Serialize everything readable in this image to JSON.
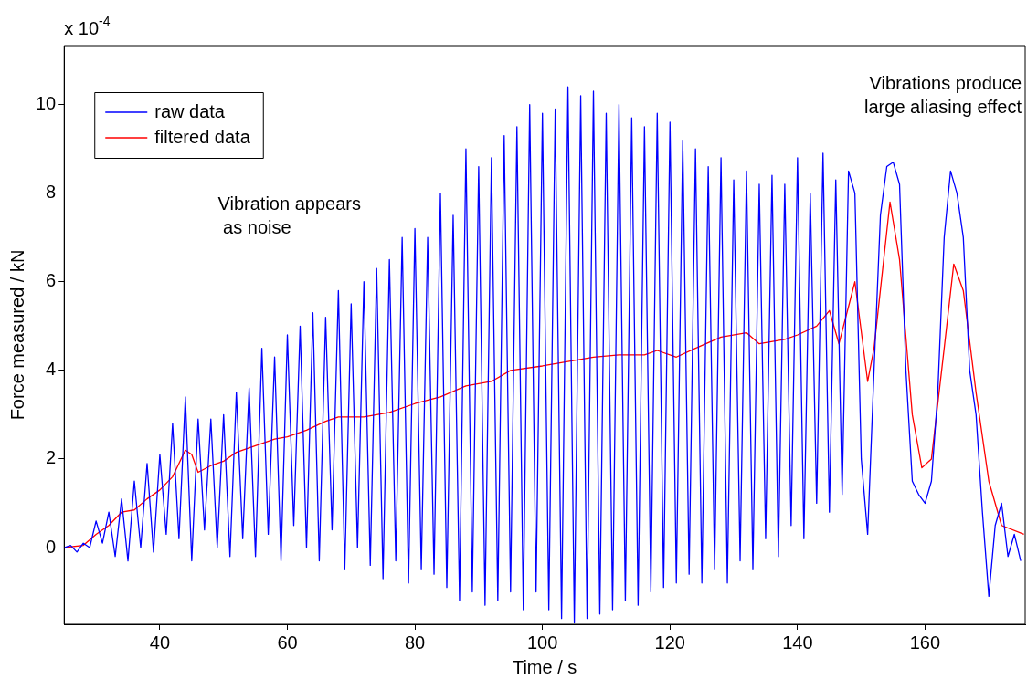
{
  "chart_data": {
    "type": "line",
    "xlabel": "Time / s",
    "ylabel": "Force measured / kN",
    "xlim": [
      25,
      175.7
    ],
    "ylim": [
      -1.73,
      11.33
    ],
    "xticks": [
      40,
      60,
      80,
      100,
      120,
      140,
      160
    ],
    "yticks": [
      0,
      2,
      4,
      6,
      8,
      10
    ],
    "legend": "top left",
    "grid": false,
    "annotations": [
      "x 10$^{-4}$",
      "Vibration appears\n as noise",
      "Vibrations produce\nlarge aliasing effect"
    ],
    "series": [
      {
        "name": "raw data",
        "color": "#0000ff",
        "x": [
          25,
          26,
          27,
          28,
          29,
          30,
          31,
          32,
          33,
          34,
          35,
          36,
          37,
          38,
          39,
          40,
          41,
          42,
          43,
          44,
          45,
          46,
          47,
          48,
          49,
          50,
          51,
          52,
          53,
          54,
          55,
          56,
          57,
          58,
          59,
          60,
          61,
          62,
          63,
          64,
          65,
          66,
          67,
          68,
          69,
          70,
          71,
          72,
          73,
          74,
          75,
          76,
          77,
          78,
          79,
          80,
          81,
          82,
          83,
          84,
          85,
          86,
          87,
          88,
          89,
          90,
          91,
          92,
          93,
          94,
          95,
          96,
          97,
          98,
          99,
          100,
          101,
          102,
          103,
          104,
          105,
          106,
          107,
          108,
          109,
          110,
          111,
          112,
          113,
          114,
          115,
          116,
          117,
          118,
          119,
          120,
          121,
          122,
          123,
          124,
          125,
          126,
          127,
          128,
          129,
          130,
          131,
          132,
          133,
          134,
          135,
          136,
          137,
          138,
          139,
          140,
          141,
          142,
          143,
          144,
          145,
          146,
          147,
          148,
          149,
          150,
          151,
          152,
          153,
          154,
          155,
          156,
          157,
          158,
          159,
          160,
          161,
          162,
          163,
          164,
          165,
          166,
          167,
          168,
          169,
          170,
          171,
          172,
          173,
          174,
          175
        ],
        "values": [
          0,
          0.05,
          -0.1,
          0.1,
          0,
          0.6,
          0.1,
          0.8,
          -0.2,
          1.1,
          -0.3,
          1.5,
          0,
          1.9,
          -0.1,
          2.1,
          0.3,
          2.8,
          0.2,
          3.4,
          -0.3,
          2.9,
          0.4,
          2.9,
          0,
          3.0,
          -0.2,
          3.5,
          0.2,
          3.6,
          -0.2,
          4.5,
          0.3,
          4.3,
          -0.3,
          4.8,
          0.5,
          5.0,
          0,
          5.3,
          -0.3,
          5.2,
          0.4,
          5.8,
          -0.5,
          5.5,
          0,
          6.0,
          -0.4,
          6.3,
          -0.7,
          6.5,
          -0.3,
          7.0,
          -0.8,
          7.2,
          -0.5,
          7.0,
          -0.6,
          8.0,
          -0.9,
          7.5,
          -1.2,
          9.0,
          -1.0,
          8.6,
          -1.3,
          8.8,
          -1.2,
          9.3,
          -1.0,
          9.5,
          -1.4,
          10.0,
          -1.0,
          9.8,
          -1.4,
          9.9,
          -1.6,
          10.4,
          -1.7,
          10.2,
          -1.6,
          10.3,
          -1.5,
          9.8,
          -1.4,
          10.0,
          -1.2,
          9.7,
          -1.3,
          9.5,
          -1.0,
          9.8,
          -0.9,
          9.6,
          -0.8,
          9.2,
          -0.6,
          9.0,
          -0.8,
          8.6,
          -0.5,
          8.8,
          -0.8,
          8.3,
          -0.3,
          8.5,
          -0.5,
          8.2,
          0.2,
          8.4,
          -0.2,
          8.2,
          0.5,
          8.8,
          0.2,
          8.0,
          1.0,
          8.9,
          0.8,
          8.3,
          1.2,
          8.5,
          8.0,
          2.0,
          0.3,
          4.0,
          7.5,
          8.6,
          8.7,
          8.2,
          4.0,
          1.5,
          1.2,
          1.0,
          1.5,
          3.5,
          7.0,
          8.5,
          8.0,
          7.0,
          4.0,
          3.0,
          0.8,
          -1.1,
          0.5,
          1.0,
          -0.2,
          0.3,
          -0.3
        ]
      },
      {
        "name": "filtered data",
        "color": "#ff0000",
        "x": [
          25,
          28,
          30,
          32,
          34,
          36,
          38,
          40,
          42,
          44,
          45,
          46,
          48,
          50,
          52,
          55,
          58,
          60,
          63,
          66,
          68,
          72,
          76,
          80,
          84,
          88,
          92,
          95,
          100,
          104,
          108,
          112,
          116,
          118,
          121,
          124,
          128,
          132,
          134,
          138,
          140,
          143,
          145,
          146.5,
          149,
          151,
          152,
          154.5,
          156,
          158,
          159.5,
          161,
          163,
          164.5,
          166,
          168,
          170,
          172,
          175.5
        ],
        "values": [
          0,
          0.05,
          0.3,
          0.5,
          0.8,
          0.85,
          1.1,
          1.3,
          1.6,
          2.2,
          2.1,
          1.7,
          1.85,
          1.95,
          2.15,
          2.3,
          2.45,
          2.5,
          2.65,
          2.85,
          2.95,
          2.95,
          3.05,
          3.25,
          3.4,
          3.65,
          3.75,
          4.0,
          4.1,
          4.2,
          4.3,
          4.35,
          4.35,
          4.45,
          4.3,
          4.5,
          4.75,
          4.85,
          4.6,
          4.7,
          4.8,
          5.0,
          5.35,
          4.6,
          6.0,
          3.75,
          4.5,
          7.8,
          6.5,
          3.0,
          1.8,
          2.0,
          4.5,
          6.4,
          5.8,
          3.5,
          1.5,
          0.5,
          0.3
        ]
      }
    ]
  }
}
